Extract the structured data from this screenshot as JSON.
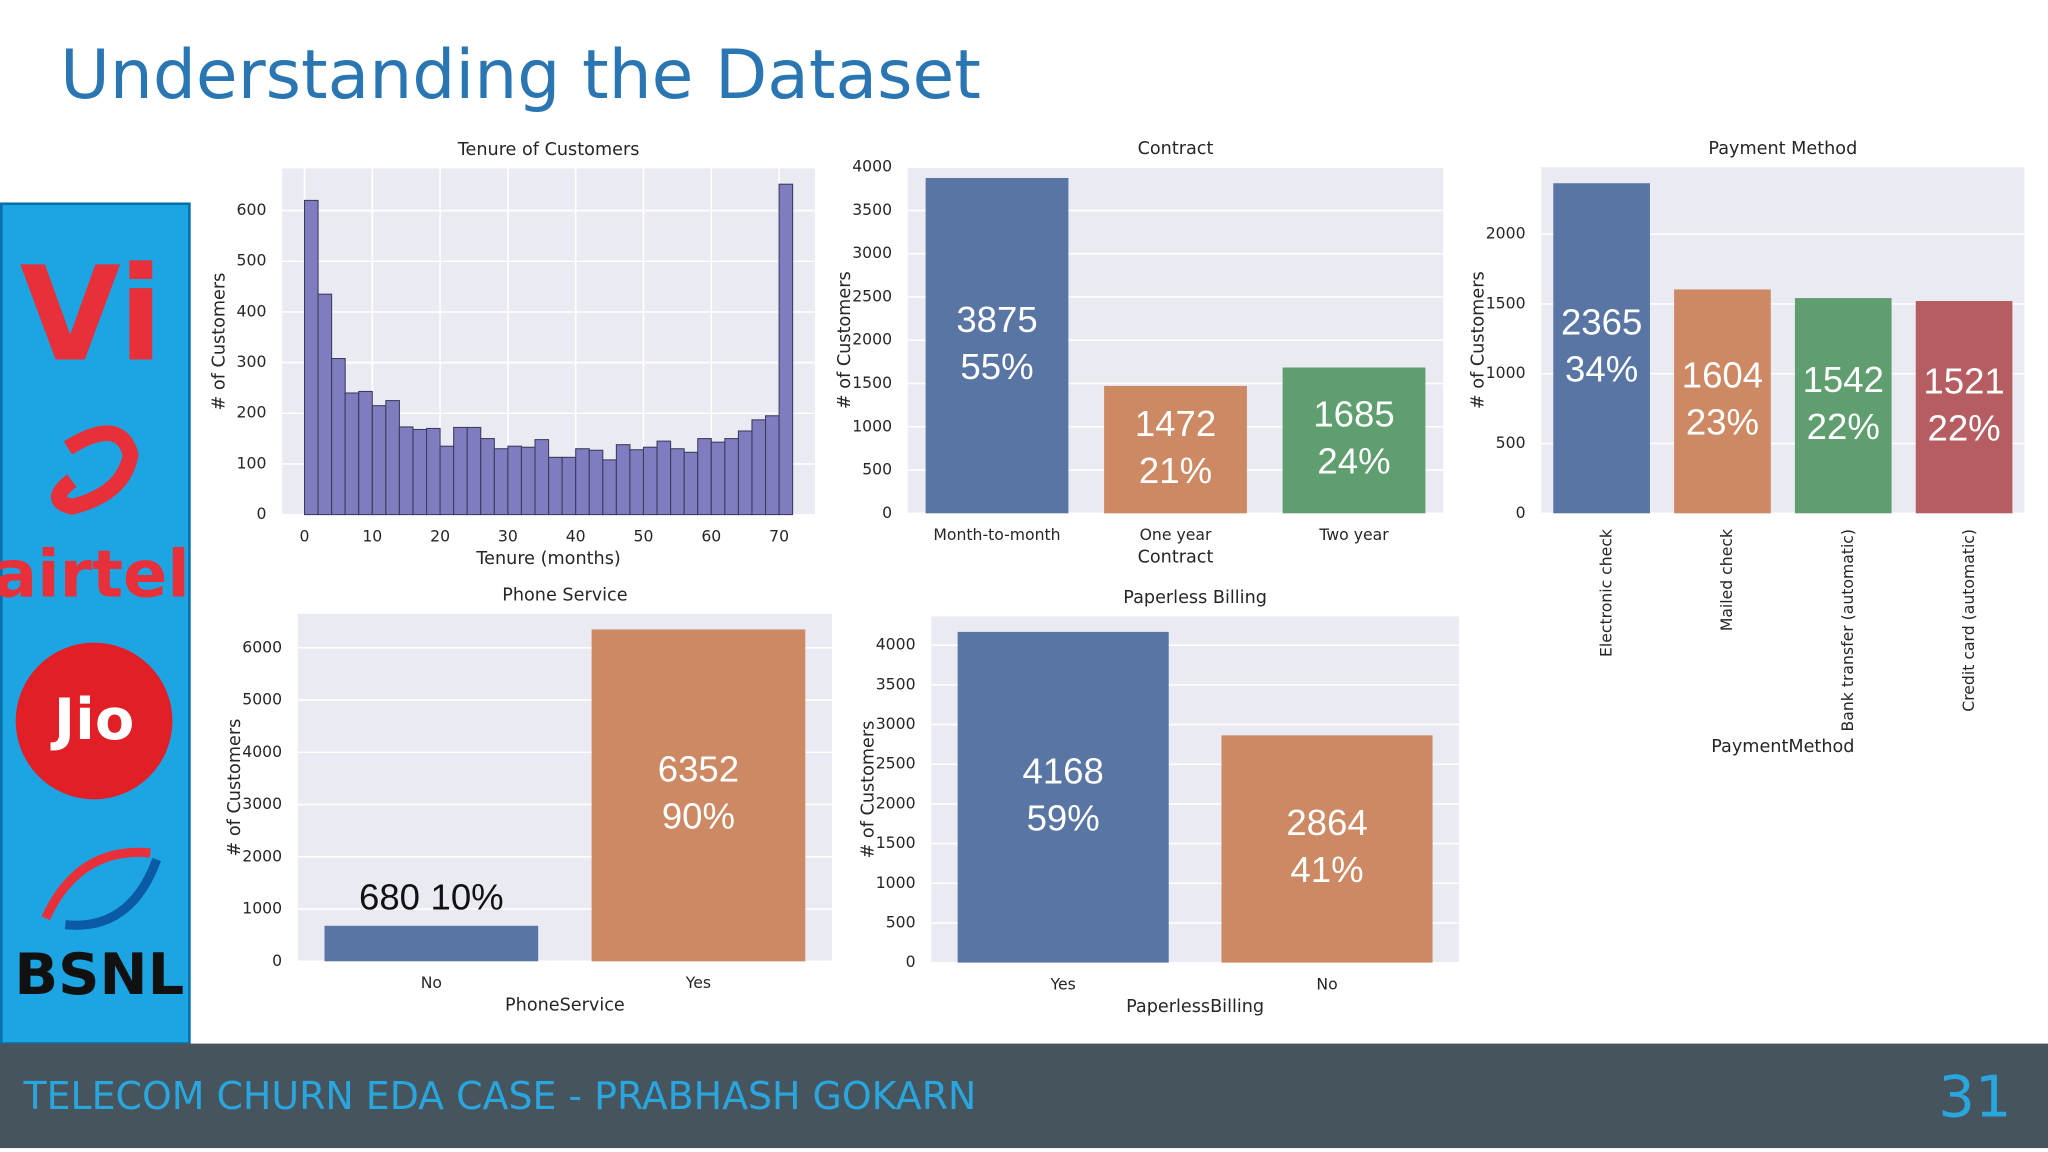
{
  "slide_title": "Understanding the Dataset",
  "footer": "TELECOM CHURN EDA CASE - PRABHASH GOKARN",
  "page_number": "31",
  "logos": [
    "Vi",
    "airtel",
    "Jio",
    "BSNL"
  ],
  "chart_data": [
    {
      "type": "histogram",
      "title": "Tenure of Customers",
      "xlabel": "Tenure (months)",
      "ylabel": "# of Customers",
      "bins": [
        0,
        2,
        4,
        6,
        8,
        10,
        12,
        14,
        16,
        18,
        20,
        22,
        24,
        26,
        28,
        30,
        32,
        34,
        36,
        38,
        40,
        42,
        44,
        46,
        48,
        50,
        52,
        54,
        56,
        58,
        60,
        62,
        64,
        66,
        68,
        70,
        72
      ],
      "values": [
        620,
        435,
        308,
        240,
        243,
        215,
        225,
        173,
        168,
        170,
        135,
        172,
        172,
        150,
        130,
        135,
        133,
        148,
        113,
        113,
        130,
        127,
        108,
        138,
        128,
        133,
        145,
        130,
        123,
        150,
        143,
        150,
        165,
        187,
        195,
        652
      ],
      "color": "#7f7cc0",
      "xlim": [
        -3.3,
        75.3
      ],
      "xticks": [
        0,
        10,
        20,
        30,
        40,
        50,
        60,
        70
      ],
      "ylim": [
        0,
        683
      ],
      "yticks": [
        0,
        100,
        200,
        300,
        400,
        500,
        600
      ],
      "grid": true
    },
    {
      "type": "bar",
      "title": "Contract",
      "xlabel": "Contract",
      "ylabel": "# of Customers",
      "categories": [
        "Month-to-month",
        "One year",
        "Two year"
      ],
      "values": [
        3875,
        1472,
        1685
      ],
      "share_labels": [
        "55%",
        "21%",
        "24%"
      ],
      "colors": [
        "#5875a4",
        "#cc8963",
        "#5f9e6e"
      ],
      "ylim": [
        0,
        4000
      ],
      "yticks": [
        0,
        500,
        1000,
        1500,
        2000,
        2500,
        3000,
        3500,
        4000
      ],
      "grid": true
    },
    {
      "type": "bar",
      "title": "Payment Method",
      "xlabel": "PaymentMethod",
      "ylabel": "# of Customers",
      "categories": [
        "Electronic check",
        "Mailed check",
        "Bank transfer (automatic)",
        "Credit card (automatic)"
      ],
      "values": [
        2365,
        1604,
        1542,
        1521
      ],
      "share_labels": [
        "34%",
        "23%",
        "22%",
        "22%"
      ],
      "colors": [
        "#5875a4",
        "#cc8963",
        "#5f9e6e",
        "#b55d60"
      ],
      "ylim": [
        0,
        2480
      ],
      "yticks": [
        0,
        500,
        1000,
        1500,
        2000
      ],
      "rotate_labels": true,
      "grid": true
    },
    {
      "type": "bar",
      "title": "Phone Service",
      "xlabel": "PhoneService",
      "ylabel": "# of Customers",
      "categories": [
        "No",
        "Yes"
      ],
      "values": [
        680,
        6352
      ],
      "share_labels": [
        "10%",
        "90%"
      ],
      "colors": [
        "#5875a4",
        "#cc8963"
      ],
      "ylim": [
        0,
        6650
      ],
      "yticks": [
        0,
        1000,
        2000,
        3000,
        4000,
        5000,
        6000
      ],
      "grid": true
    },
    {
      "type": "bar",
      "title": "Paperless Billing",
      "xlabel": "PaperlessBilling",
      "ylabel": "# of Customers",
      "categories": [
        "Yes",
        "No"
      ],
      "values": [
        4168,
        2864
      ],
      "share_labels": [
        "59%",
        "41%"
      ],
      "colors": [
        "#5875a4",
        "#cc8963"
      ],
      "ylim": [
        0,
        4362
      ],
      "yticks": [
        0,
        500,
        1000,
        1500,
        2000,
        2500,
        3000,
        3500,
        4000
      ],
      "grid": true
    }
  ]
}
